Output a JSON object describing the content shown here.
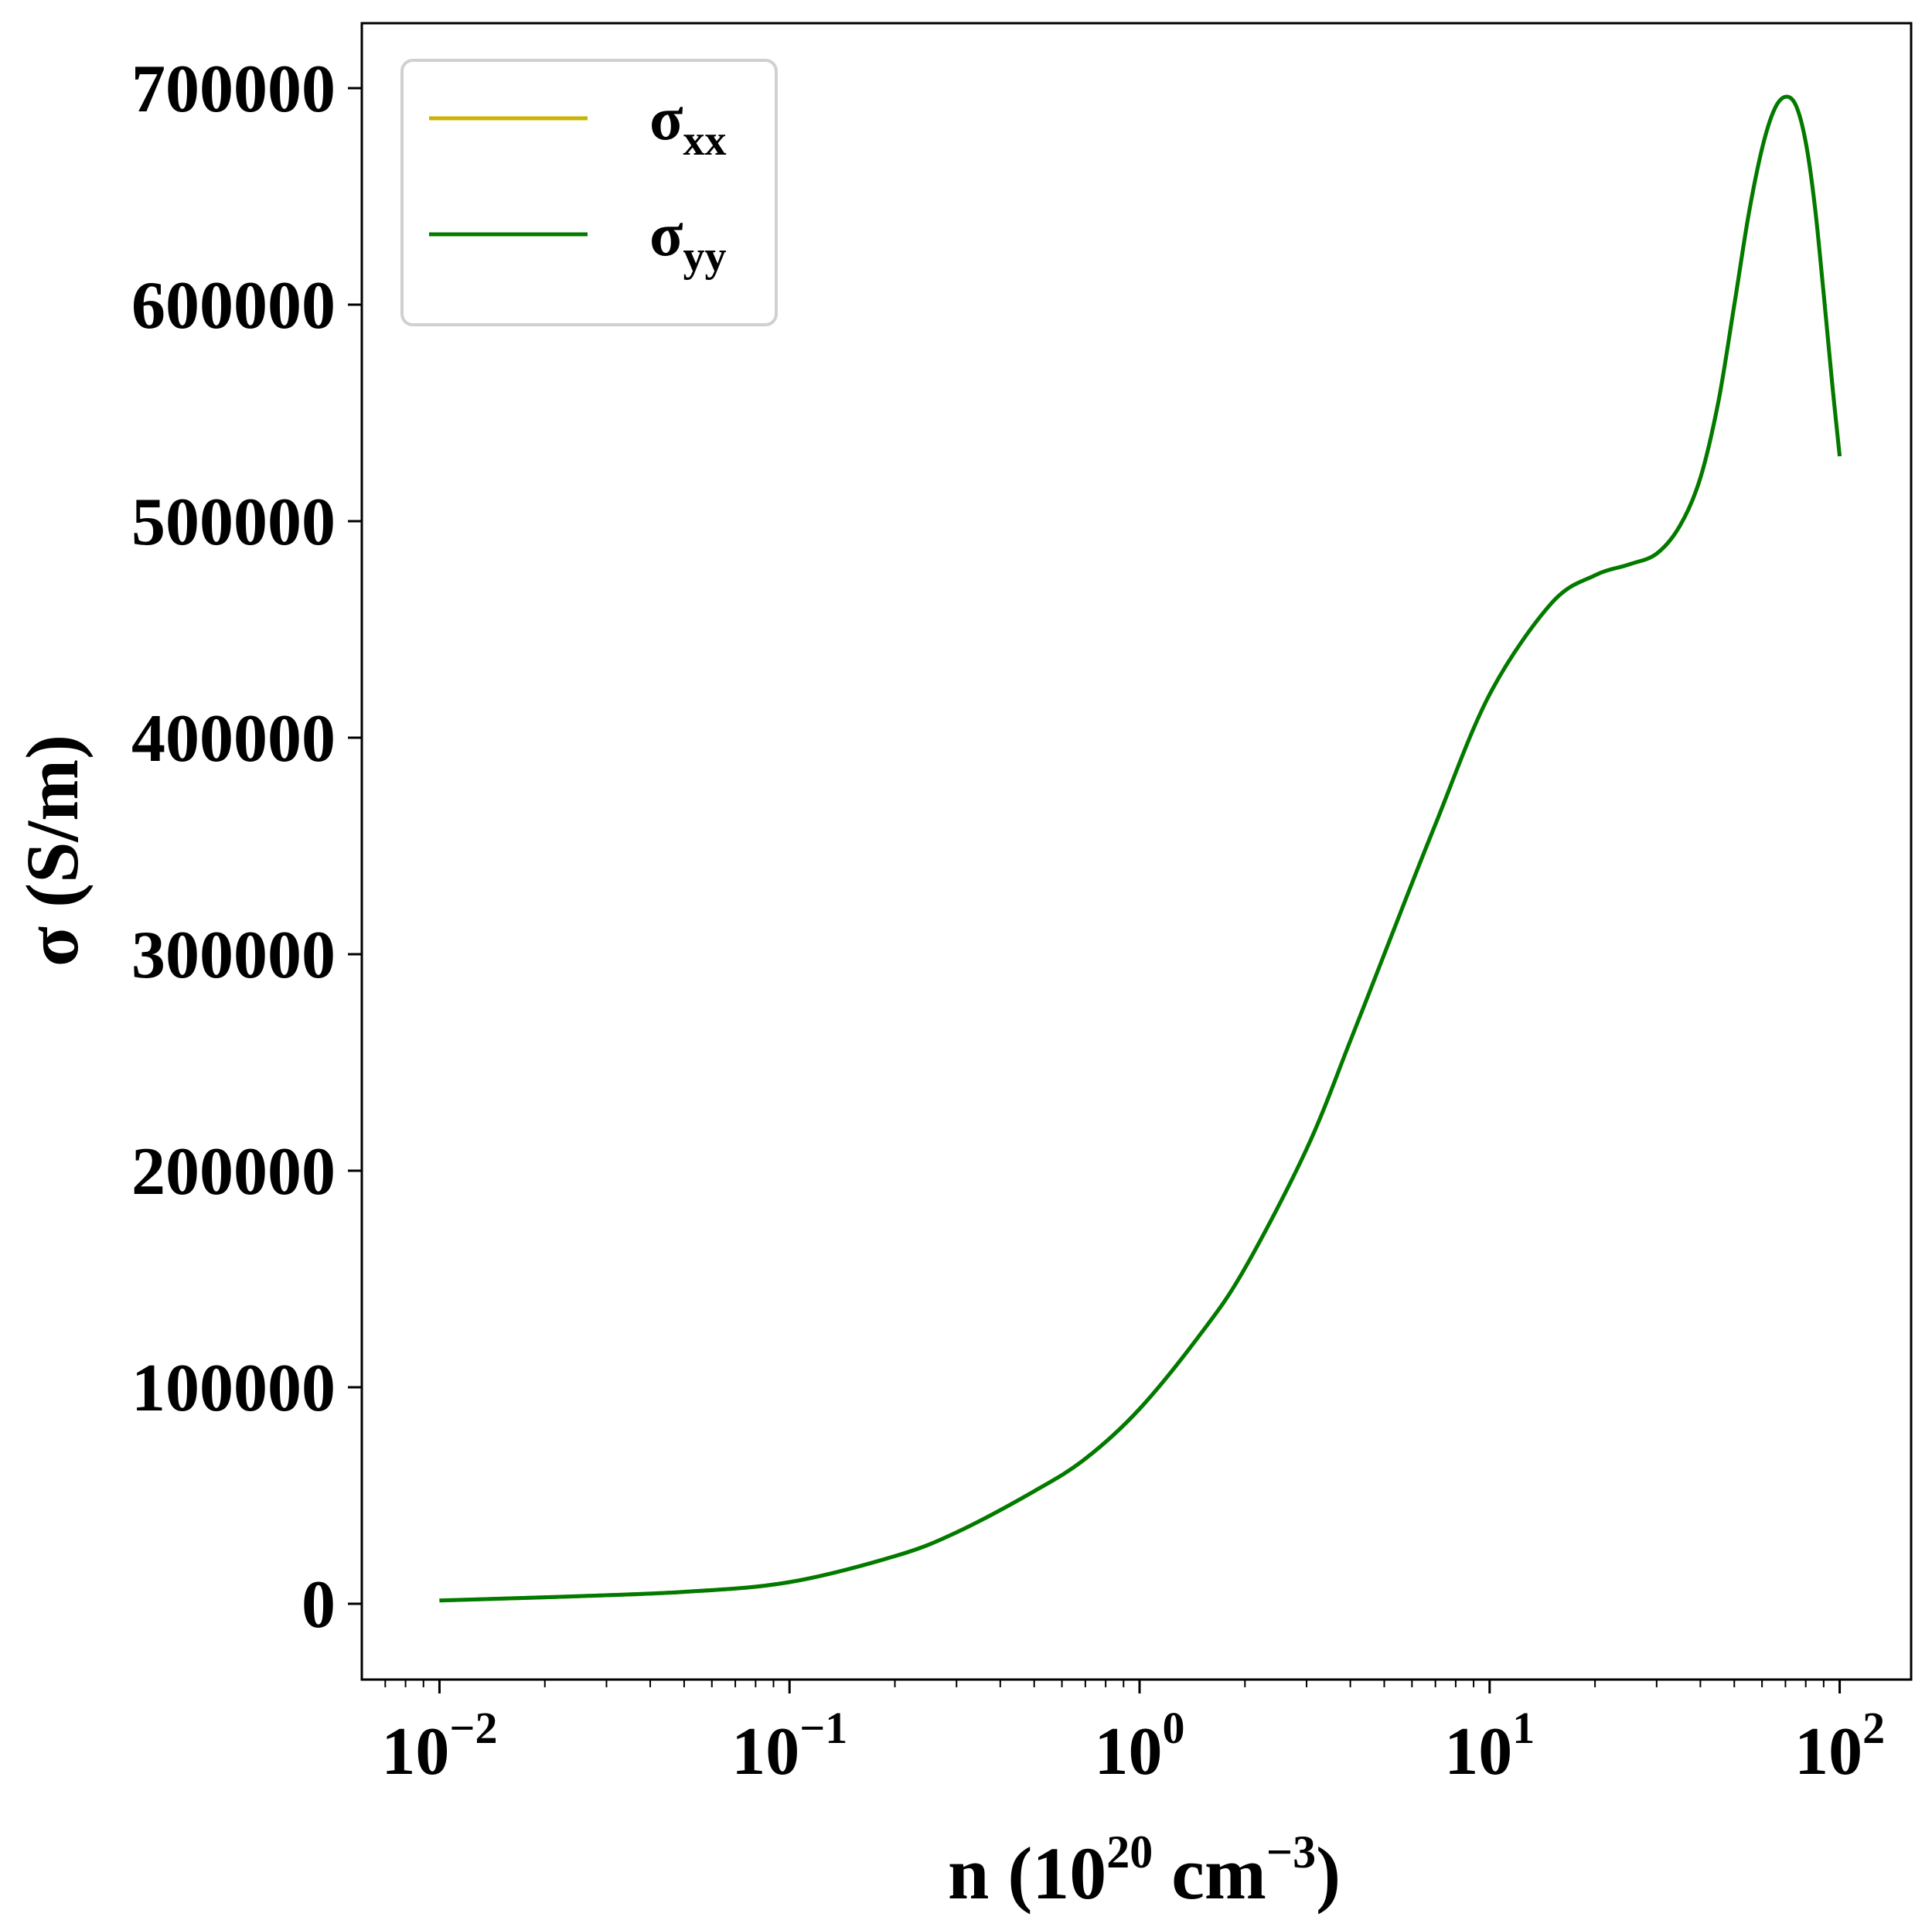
{
  "chart_data": {
    "type": "line",
    "xscale": "log",
    "xlim": [
      0.006,
      160
    ],
    "ylim": [
      -35000,
      730000
    ],
    "grid": false,
    "legend_position": "top-left",
    "xlabel": {
      "base": "n (10",
      "exp": "20",
      "mid": " cm",
      "exp2": "−3",
      "end": ")"
    },
    "ylabel": "σ (S/m)",
    "xticks": [
      {
        "value": 0.01,
        "base": "10",
        "exp": "−2"
      },
      {
        "value": 0.1,
        "base": "10",
        "exp": "−1"
      },
      {
        "value": 1,
        "base": "10",
        "exp": "0"
      },
      {
        "value": 10,
        "base": "10",
        "exp": "1"
      },
      {
        "value": 100,
        "base": "10",
        "exp": "2"
      }
    ],
    "yticks": [
      {
        "value": 0,
        "label": "0"
      },
      {
        "value": 100000,
        "label": "100000"
      },
      {
        "value": 200000,
        "label": "200000"
      },
      {
        "value": 300000,
        "label": "300000"
      },
      {
        "value": 400000,
        "label": "400000"
      },
      {
        "value": 500000,
        "label": "500000"
      },
      {
        "value": 600000,
        "label": "600000"
      },
      {
        "value": 700000,
        "label": "700000"
      }
    ],
    "series": [
      {
        "name": "σxx",
        "legend_base": "σ",
        "legend_sub": "xx",
        "color": "#c8b400",
        "x": [
          0.01,
          0.02,
          0.05,
          0.1,
          0.2,
          0.3,
          0.5,
          0.7,
          1,
          1.5,
          2,
          3,
          4,
          5,
          7,
          10,
          15,
          20,
          25,
          30,
          35,
          40,
          45,
          50,
          55,
          60,
          65,
          70,
          75,
          80,
          85,
          90,
          95,
          100
        ],
        "y": [
          1500,
          3000,
          5500,
          10000,
          22000,
          33000,
          52000,
          67000,
          90000,
          125000,
          155000,
          210000,
          260000,
          300000,
          360000,
          420000,
          462000,
          475000,
          480000,
          485000,
          498000,
          520000,
          555000,
          600000,
          642000,
          672000,
          690000,
          696000,
          692000,
          675000,
          645000,
          605000,
          565000,
          530000
        ]
      },
      {
        "name": "σyy",
        "legend_base": "σ",
        "legend_sub": "yy",
        "color": "#007a00",
        "x": [
          0.01,
          0.02,
          0.05,
          0.1,
          0.2,
          0.3,
          0.5,
          0.7,
          1,
          1.5,
          2,
          3,
          4,
          5,
          7,
          10,
          15,
          20,
          25,
          30,
          35,
          40,
          45,
          50,
          55,
          60,
          65,
          70,
          75,
          80,
          85,
          90,
          95,
          100
        ],
        "y": [
          1500,
          3000,
          5500,
          10000,
          22000,
          33000,
          52000,
          67000,
          90000,
          125000,
          155000,
          210000,
          260000,
          300000,
          360000,
          420000,
          462000,
          475000,
          480000,
          485000,
          498000,
          520000,
          555000,
          600000,
          642000,
          672000,
          690000,
          696000,
          692000,
          675000,
          645000,
          605000,
          565000,
          530000
        ]
      }
    ]
  }
}
